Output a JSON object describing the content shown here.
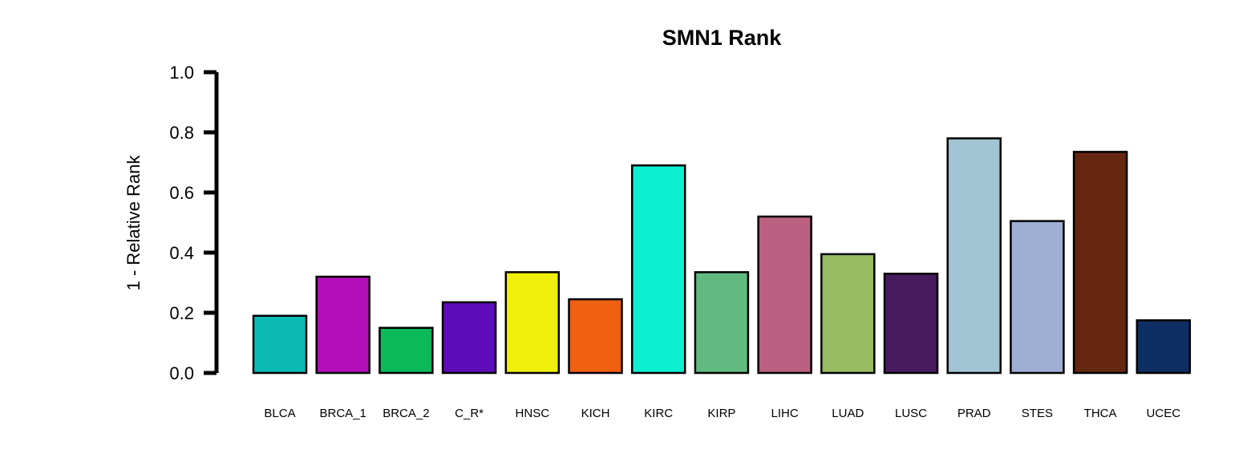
{
  "chart_data": {
    "type": "bar",
    "title": "SMN1 Rank",
    "xlabel": "",
    "ylabel": "1 - Relative Rank",
    "ylim": [
      0,
      1
    ],
    "yticks": [
      "0.0",
      "0.2",
      "0.4",
      "0.6",
      "0.8",
      "1.0"
    ],
    "grid": false,
    "legend": "none",
    "categories": [
      "BLCA",
      "BRCA_1",
      "BRCA_2",
      "C_R*",
      "HNSC",
      "KICH",
      "KIRC",
      "KIRP",
      "LIHC",
      "LUAD",
      "LUSC",
      "PRAD",
      "STES",
      "THCA",
      "UCEC"
    ],
    "values": [
      0.19,
      0.32,
      0.15,
      0.235,
      0.335,
      0.245,
      0.69,
      0.335,
      0.52,
      0.395,
      0.33,
      0.78,
      0.505,
      0.735,
      0.175
    ],
    "colors": [
      "#0BBAB5",
      "#B40DBA",
      "#0BB85A",
      "#5E0BBA",
      "#EFEF0B",
      "#F06011",
      "#0FEFD2",
      "#61BA80",
      "#BB6080",
      "#97BB61",
      "#481B5E",
      "#A0C4D3",
      "#9EAED3",
      "#662711",
      "#0F2E63"
    ]
  }
}
